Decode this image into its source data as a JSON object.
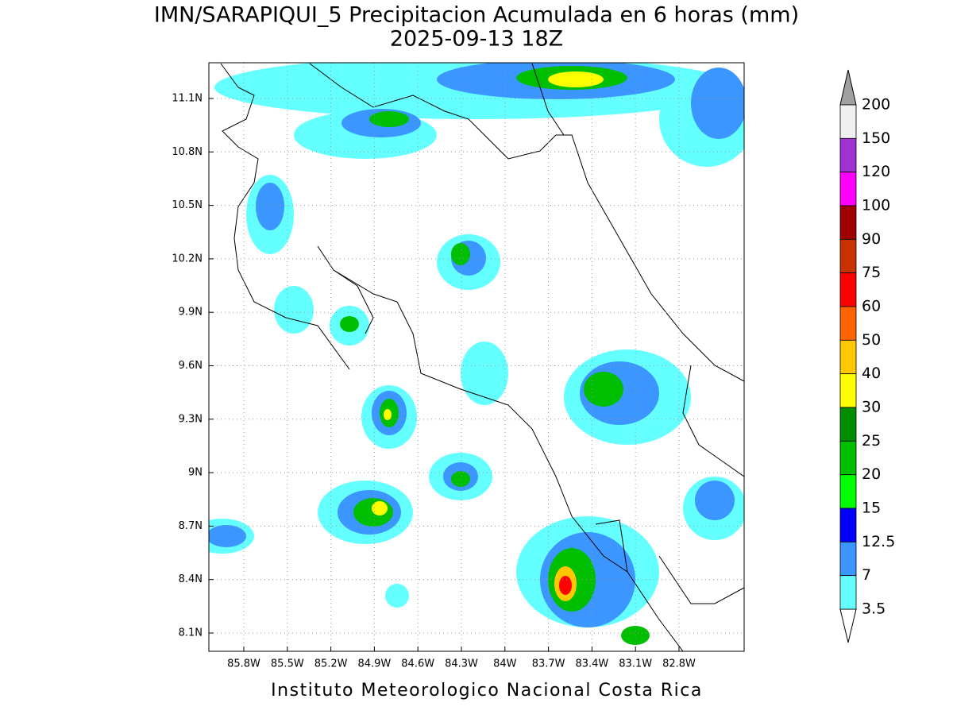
{
  "title": "IMN/SARAPIQUI_5 Precipitacion Acumulada en 6 horas (mm)",
  "subtitle": "2025-09-13 18Z",
  "x_labels": [
    "85.8W",
    "85.5W",
    "85.2W",
    "84.9W",
    "84.6W",
    "84.3W",
    "84W",
    "83.7W",
    "83.4W",
    "83.1W",
    "82.8W"
  ],
  "y_labels": [
    "11.1N",
    "10.8N",
    "10.5N",
    "10.2N",
    "9.9N",
    "9.6N",
    "9.3N",
    "9N",
    "8.7N",
    "8.4N",
    "8.1N"
  ],
  "colorbar": {
    "labels": [
      "200",
      "150",
      "120",
      "100",
      "90",
      "75",
      "60",
      "50",
      "40",
      "30",
      "25",
      "20",
      "15",
      "12.5",
      "7",
      "3.5"
    ],
    "colors": [
      "#f0f0f0",
      "#a032d2",
      "#ff00ff",
      "#a00000",
      "#c83200",
      "#ff0000",
      "#ff6400",
      "#ffc800",
      "#ffff00",
      "#008c00",
      "#00be00",
      "#00ff00",
      "#0000ff",
      "#3c96ff",
      "#64ffff"
    ],
    "over_color": "#a0a0a0",
    "under_color": "#ffffff"
  },
  "footer": "Instituto Meteorologico Nacional Costa Rica"
}
